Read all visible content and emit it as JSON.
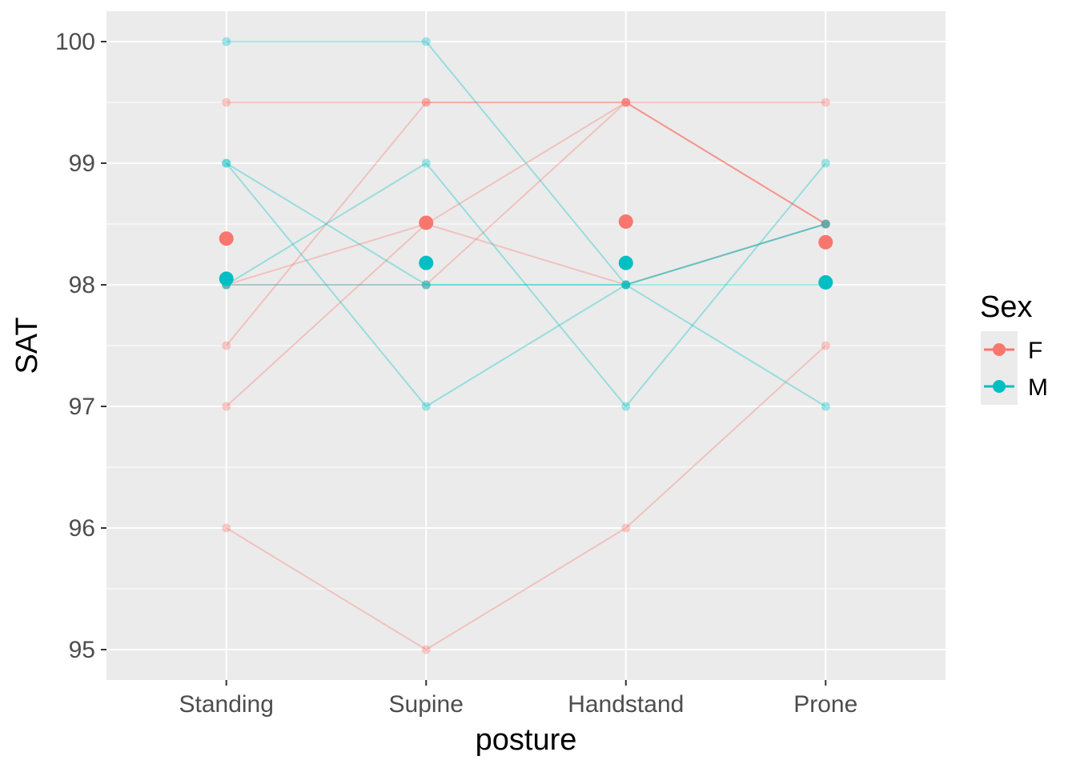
{
  "chart_data": {
    "type": "line",
    "title": "",
    "xlabel": "posture",
    "ylabel": "SAT",
    "categories": [
      "Standing",
      "Supine",
      "Handstand",
      "Prone"
    ],
    "ylim": [
      94.75,
      100.25
    ],
    "yticks": [
      95,
      96,
      97,
      98,
      99,
      100
    ],
    "ytick_labels": [
      "95",
      "96",
      "97",
      "98",
      "99",
      "100"
    ],
    "grid": true,
    "legend": {
      "title": "Sex",
      "position": "right",
      "entries": [
        {
          "label": "F",
          "color": "#F8766D"
        },
        {
          "label": "M",
          "color": "#00BFC4"
        }
      ]
    },
    "subjects": [
      {
        "sex": "F",
        "values": [
          99.5,
          99.5,
          99.5,
          99.5
        ]
      },
      {
        "sex": "F",
        "values": [
          98,
          98.5,
          98,
          98.5
        ]
      },
      {
        "sex": "F",
        "values": [
          98,
          98,
          99.5,
          98.5
        ]
      },
      {
        "sex": "F",
        "values": [
          97.5,
          99.5,
          99.5,
          98.5
        ]
      },
      {
        "sex": "F",
        "values": [
          97,
          98.5,
          99.5,
          98.5
        ]
      },
      {
        "sex": "F",
        "values": [
          96,
          95,
          96,
          97.5
        ]
      },
      {
        "sex": "M",
        "values": [
          100,
          100,
          98,
          98.5
        ]
      },
      {
        "sex": "M",
        "values": [
          99,
          98,
          98,
          98.5
        ]
      },
      {
        "sex": "M",
        "values": [
          99,
          97,
          98,
          98
        ]
      },
      {
        "sex": "M",
        "values": [
          98,
          99,
          97,
          99
        ]
      },
      {
        "sex": "M",
        "values": [
          98,
          98,
          98,
          97
        ]
      }
    ],
    "series": [
      {
        "name": "F",
        "values": [
          98.38,
          98.51,
          98.52,
          98.35
        ]
      },
      {
        "name": "M",
        "values": [
          98.05,
          98.18,
          98.18,
          98.02
        ]
      }
    ],
    "colors": {
      "F": "#F8766D",
      "M": "#00BFC4",
      "panel": "#EBEBEB",
      "grid_major": "#FFFFFF",
      "overlap": "#7FA09F"
    }
  }
}
